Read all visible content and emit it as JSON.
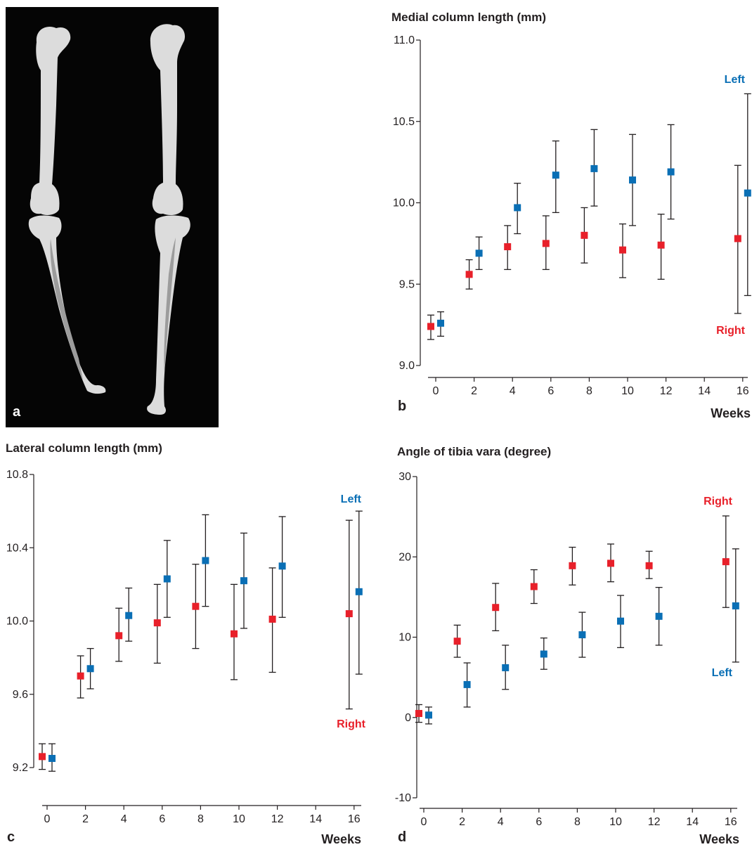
{
  "colors": {
    "right": "#e8202a",
    "left": "#0a6fb5"
  },
  "panel_a": {
    "label": "a"
  },
  "chart_data": [
    {
      "id": "b",
      "type": "scatter",
      "panel_label": "b",
      "title": "Medial column length (mm)",
      "xlabel": "Weeks",
      "ylim": [
        9.0,
        11.0
      ],
      "yticks": [
        "9.0",
        "9.5",
        "10.0",
        "10.5",
        "11.0"
      ],
      "ytick_values": [
        9.0,
        9.5,
        10.0,
        10.5,
        11.0
      ],
      "xlim": [
        0,
        16
      ],
      "xticks": [
        0,
        2,
        4,
        6,
        8,
        10,
        12,
        14,
        16
      ],
      "series_labels": {
        "right": "Right",
        "left": "Left"
      },
      "series": [
        {
          "name": "Right",
          "key": "right",
          "x": [
            0,
            2,
            4,
            6,
            8,
            10,
            12,
            16
          ],
          "y": [
            9.24,
            9.56,
            9.73,
            9.75,
            9.8,
            9.71,
            9.74,
            9.78
          ],
          "err_low": [
            9.16,
            9.47,
            9.59,
            9.59,
            9.63,
            9.54,
            9.53,
            9.32
          ],
          "err_high": [
            9.31,
            9.65,
            9.86,
            9.92,
            9.97,
            9.87,
            9.93,
            10.23
          ]
        },
        {
          "name": "Left",
          "key": "left",
          "x": [
            0,
            2,
            4,
            6,
            8,
            10,
            12,
            16
          ],
          "y": [
            9.26,
            9.69,
            9.97,
            10.17,
            10.21,
            10.14,
            10.19,
            10.06
          ],
          "err_low": [
            9.18,
            9.59,
            9.81,
            9.94,
            9.98,
            9.86,
            9.9,
            9.43
          ],
          "err_high": [
            9.33,
            9.79,
            10.12,
            10.38,
            10.45,
            10.42,
            10.48,
            10.67
          ]
        }
      ]
    },
    {
      "id": "c",
      "type": "scatter",
      "panel_label": "c",
      "title": "Lateral column length (mm)",
      "xlabel": "Weeks",
      "ylim": [
        9.2,
        10.8
      ],
      "yticks": [
        "9.2",
        "9.6",
        "10.0",
        "10.4",
        "10.8"
      ],
      "ytick_values": [
        9.2,
        9.6,
        10.0,
        10.4,
        10.8
      ],
      "xlim": [
        0,
        16
      ],
      "xticks": [
        0,
        2,
        4,
        6,
        8,
        10,
        12,
        14,
        16
      ],
      "series_labels": {
        "right": "Right",
        "left": "Left"
      },
      "series": [
        {
          "name": "Right",
          "key": "right",
          "x": [
            0,
            2,
            4,
            6,
            8,
            10,
            12,
            16
          ],
          "y": [
            9.26,
            9.7,
            9.92,
            9.99,
            10.08,
            9.93,
            10.01,
            10.04
          ],
          "err_low": [
            9.19,
            9.58,
            9.78,
            9.77,
            9.85,
            9.68,
            9.72,
            9.52
          ],
          "err_high": [
            9.33,
            9.81,
            10.07,
            10.2,
            10.31,
            10.2,
            10.29,
            10.55
          ]
        },
        {
          "name": "Left",
          "key": "left",
          "x": [
            0,
            2,
            4,
            6,
            8,
            10,
            12,
            16
          ],
          "y": [
            9.25,
            9.74,
            10.03,
            10.23,
            10.33,
            10.22,
            10.3,
            10.16
          ],
          "err_low": [
            9.18,
            9.63,
            9.89,
            10.02,
            10.08,
            9.96,
            10.02,
            9.71
          ],
          "err_high": [
            9.33,
            9.85,
            10.18,
            10.44,
            10.58,
            10.48,
            10.57,
            10.6
          ]
        }
      ]
    },
    {
      "id": "d",
      "type": "scatter",
      "panel_label": "d",
      "title": "Angle of tibia vara (degree)",
      "xlabel": "Weeks",
      "ylim": [
        -10,
        30
      ],
      "yticks": [
        "-10",
        "0",
        "10",
        "20",
        "30"
      ],
      "ytick_values": [
        -10,
        0,
        10,
        20,
        30
      ],
      "xlim": [
        0,
        16
      ],
      "xticks": [
        0,
        2,
        4,
        6,
        8,
        10,
        12,
        14,
        16
      ],
      "series_labels": {
        "right": "Right",
        "left": "Left"
      },
      "series": [
        {
          "name": "Right",
          "key": "right",
          "x": [
            0,
            2,
            4,
            6,
            8,
            10,
            12,
            16
          ],
          "y": [
            0.5,
            9.5,
            13.7,
            16.3,
            18.9,
            19.2,
            18.9,
            19.4
          ],
          "err_low": [
            -0.6,
            7.5,
            10.8,
            14.2,
            16.5,
            16.9,
            17.3,
            13.7
          ],
          "err_high": [
            1.6,
            11.5,
            16.7,
            18.4,
            21.2,
            21.6,
            20.7,
            25.1
          ]
        },
        {
          "name": "Left",
          "key": "left",
          "x": [
            0,
            2,
            4,
            6,
            8,
            10,
            12,
            16
          ],
          "y": [
            0.3,
            4.1,
            6.2,
            7.9,
            10.3,
            12.0,
            12.6,
            13.9
          ],
          "err_low": [
            -0.8,
            1.3,
            3.5,
            6.0,
            7.5,
            8.7,
            9.0,
            6.9
          ],
          "err_high": [
            1.3,
            6.8,
            9.0,
            9.9,
            13.1,
            15.2,
            16.2,
            21.0
          ]
        }
      ]
    }
  ]
}
